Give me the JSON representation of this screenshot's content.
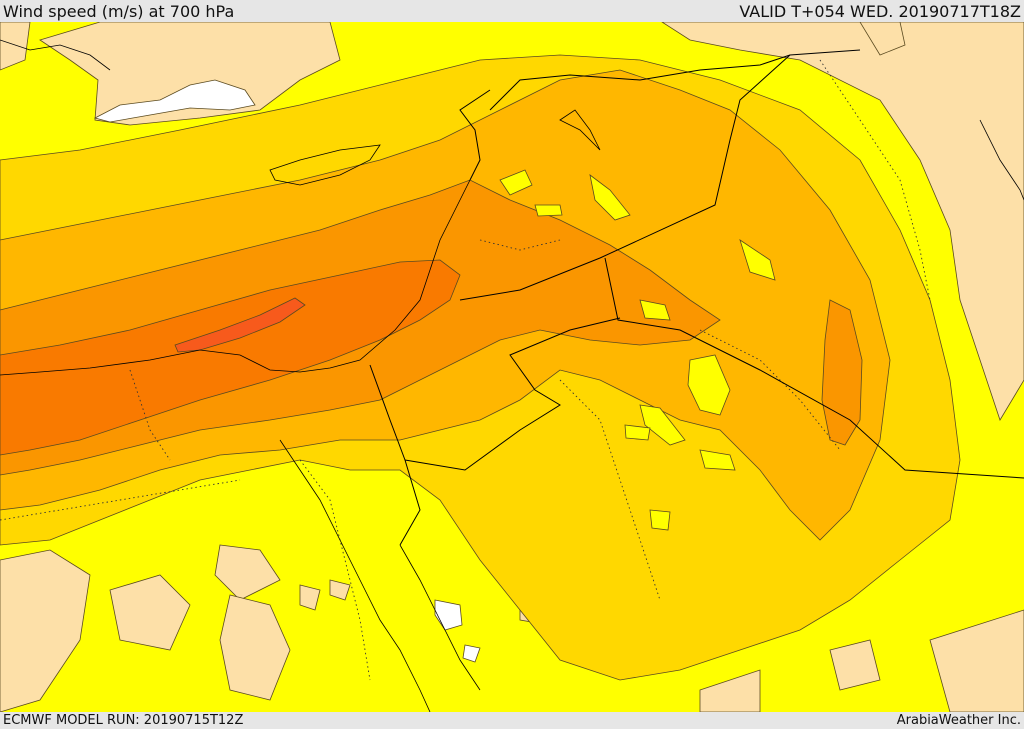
{
  "header": {
    "title": "Wind speed (m/s) at 700 hPa",
    "valid": "VALID T+054 WED. 20190717T18Z"
  },
  "footer": {
    "model_run": "ECMWF MODEL RUN: 20190715T12Z",
    "credit": "ArabiaWeather Inc."
  },
  "colors": {
    "lowest": "#ffffff",
    "low": "#fde0a8",
    "yellow": "#ffff00",
    "gold": "#ffd800",
    "amber": "#ffb700",
    "orange": "#fa9600",
    "deep_orange": "#f97a00",
    "red_orange": "#f75a1c",
    "contour": "#5a4a20",
    "border": "#000000"
  }
}
